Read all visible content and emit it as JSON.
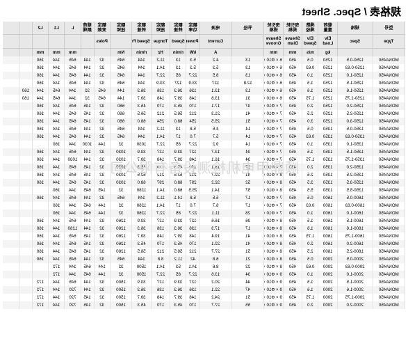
{
  "title": "规格表 / Spec. Sheet",
  "watermark": "顺鼎甲电机检测设备有限公司",
  "sheet": {
    "headers_row1": [
      "型号",
      "规格",
      "载荷\n重量",
      "绳数\n绳径",
      "曳引轮\n规格",
      "曳引轮\n规格",
      "节径",
      "电流",
      "额定\n功率",
      "额定\n转速",
      "额定\n扭矩",
      "额定\n转速",
      "额定\n扭矩",
      "额定\n变频",
      "载荷\n颜绳",
      "L",
      "L1",
      "L2"
    ],
    "headers_row2": [
      "Type",
      "Spec",
      "Elv\nLoad",
      "Elv\nSpeed",
      "Sheave\nDiam",
      "Sheave\nGroove",
      "",
      "Current",
      "Power",
      "Speed",
      "Torque",
      "Speed Freq",
      "",
      "Poles",
      "",
      " ",
      " ",
      " "
    ],
    "units": [
      "",
      "",
      "kg",
      "m/s",
      "mm",
      "mm",
      "",
      "A",
      "kW",
      "r/min",
      "Hz",
      "r/min",
      "Nm",
      "",
      "",
      "mm",
      "mm",
      "mm"
    ],
    "rows": [
      [
        "MONA450",
        "1250-0.5",
        "1250",
        "0.5",
        "450",
        "6 × Φ10 × 15",
        "13",
        "4.2",
        "5.3",
        "13",
        "11.2",
        "144",
        "645",
        "32",
        "144",
        "645",
        "144",
        "160"
      ],
      [
        "MONA450",
        "1250-0.63",
        "1250",
        "0.63",
        "450",
        "6 × Φ10 × 15",
        "13",
        "5.3",
        "5.3",
        "13",
        "14.1",
        "144",
        "645",
        "32",
        "144",
        "645",
        "144",
        "160"
      ],
      [
        "MONA450",
        "1250-1.0",
        "1250",
        "1.0",
        "450",
        "6 × Φ10 × 15",
        "13",
        "8.5",
        "22.7",
        "85",
        "22.7",
        "144",
        "645",
        "32",
        "144",
        "645",
        "144",
        "160"
      ],
      [
        "MONA450",
        "1250-1.5",
        "1250",
        "1.5",
        "450",
        "6 × Φ10 × 15",
        "12.8",
        "127",
        "33.9",
        "127",
        "33.9",
        "144",
        "645",
        "32",
        "144",
        "645",
        "144",
        "160"
      ],
      [
        "MONA450",
        "1250-1.6",
        "1250",
        "1.6",
        "450",
        "6 × Φ10 × 15",
        "13",
        "13.1",
        "136",
        "36.3",
        "136",
        "36.3",
        "144",
        "645",
        "32",
        "144",
        "645",
        "144",
        "160"
      ],
      [
        "MONA450",
        "1250-1.75",
        "1250",
        "1.75",
        "450",
        "6 × Φ10 × 15",
        "31",
        "13.8",
        "148",
        "39.7",
        "148",
        "39.7",
        "144",
        "645",
        "32",
        "144",
        "645",
        "144",
        "160"
      ],
      [
        "MONA450",
        "1250-2.0",
        "1250",
        "2.0",
        "450",
        "7 × Φ10 × 15",
        "37",
        "17.1",
        "170",
        "45.3",
        "170",
        "45.3",
        "660",
        "32",
        "145",
        "645",
        "144",
        "160"
      ],
      [
        "MONA450",
        "1250-2.5",
        "1250",
        "2.5",
        "450",
        "7 × Φ10 × 15",
        "41",
        "21.3",
        "212",
        "56.5",
        "212",
        "56.5",
        "660",
        "32",
        "145",
        "645",
        "144",
        "160"
      ],
      [
        "MONA450",
        "1250-3.0",
        "1250",
        "3.0",
        "450",
        "7 × Φ10 × 15",
        "51",
        "25.5",
        "254",
        "68.0",
        "254",
        "68.0",
        "660",
        "32",
        "145",
        "645",
        "144",
        "160"
      ],
      [
        "MONA450",
        "1350-0.5",
        "1350",
        "0.5",
        "450",
        "7 × Φ10 × 15",
        "14",
        "4.5",
        "5.8",
        "13",
        "11.2",
        "144",
        "645",
        "32",
        "144",
        "645",
        "144",
        "160"
      ],
      [
        "MONA450",
        "1350-0.63",
        "1350",
        "0.63",
        "450",
        "7 × Φ10 × 15",
        "14",
        "5.7",
        "7.0",
        "17",
        "14.1",
        "144",
        "645",
        "32",
        "144",
        "645",
        "144",
        "160"
      ],
      [
        "MONA450",
        "1350-1.0",
        "1350",
        "1.0",
        "450",
        "7 × Φ10 × 15",
        "14",
        "9.2",
        "22.7",
        "85",
        "22.7",
        "1030",
        "32",
        "144",
        "1030",
        "144",
        "160"
      ],
      [
        "MONA450",
        "1350-1.5",
        "1350",
        "1.5",
        "450",
        "7 × Φ10 × 15",
        "34",
        "13.7",
        "127",
        "33.9",
        "127",
        "33.9",
        "1030",
        "32",
        "144",
        "645",
        "144",
        "160"
      ],
      [
        "MONA450",
        "1350-1.75",
        "1350",
        "1.75",
        "450",
        "7 × Φ10 × 15",
        "34",
        "16.1",
        "148",
        "39.7",
        "148",
        "39.7",
        "1030",
        "32",
        "144",
        "1030",
        "144",
        "160"
      ],
      [
        "MONA450",
        "1350-2.0",
        "1350",
        "2.0",
        "450",
        "7 × Φ10 × 15",
        "37",
        "18.1",
        "170",
        "45.3",
        "170",
        "45.3",
        "1030",
        "32",
        "145",
        "645",
        "144",
        "160"
      ],
      [
        "MONA450",
        "1350-2.5",
        "1350",
        "2.5",
        "450",
        "8 × Φ10 × 15",
        "41",
        "22.7",
        "212",
        "52.5",
        "212",
        "52.5",
        "1030",
        "32",
        "145",
        "645",
        "144",
        "160"
      ],
      [
        "MONA450",
        "1350-3.5",
        "1350",
        "3.5",
        "450",
        "8 × Φ10 × 15",
        "52",
        "32.2",
        "297",
        "68.0",
        "297",
        "68.0",
        "1030",
        "32",
        "145",
        "645",
        "144",
        "160"
      ],
      [
        "MONA450",
        "1350-5.5",
        "1350",
        "5.5",
        "450",
        "8 × Φ10 × 15",
        "57",
        "14.1",
        "25.5",
        "68.0",
        "14.1",
        "1280",
        "32",
        "145",
        "645",
        "144",
        "160"
      ],
      [
        "MONA450",
        "1600-0.5",
        "1600",
        "0.5",
        "450",
        "7 × Φ10 × 15",
        "17",
        "5.5",
        "5.8",
        "14.1",
        "11.2",
        "144",
        "645",
        "32",
        "144",
        "645",
        "144",
        "160"
      ],
      [
        "MONA450",
        "1600-0.63",
        "1600",
        "0.63",
        "450",
        "7 × Φ10 × 15",
        "17",
        "6.7",
        "7.0",
        "17",
        "14.1",
        "1260",
        "32",
        "144",
        "645",
        "144",
        "160"
      ],
      [
        "MONA450",
        "1600-1.0",
        "1600",
        "1.0",
        "450",
        "7 × Φ10 × 15",
        "28",
        "11.1",
        "22.7",
        "85",
        "22.7",
        "1260",
        "32",
        "144",
        "645",
        "144",
        "160"
      ],
      [
        "MONA450",
        "1600-1.5",
        "1600",
        "1.5",
        "450",
        "8 × Φ10 × 15",
        "36",
        "16.6",
        "127",
        "33.9",
        "127",
        "33.9",
        "1260",
        "32",
        "144",
        "645",
        "144",
        "160"
      ],
      [
        "MONA450",
        "1600-1.6",
        "1600",
        "1.6",
        "450",
        "8 × Φ10 × 15",
        "17",
        "17.3",
        "136",
        "36.3",
        "136",
        "36.3",
        "1260",
        "32",
        "144",
        "1260",
        "144",
        "160"
      ],
      [
        "MONA450",
        "1600-1.75",
        "1600",
        "1.75",
        "450",
        "8 × Φ10 × 15",
        "41",
        "19.4",
        "148",
        "39.7",
        "148",
        "39.7",
        "1260",
        "32",
        "145",
        "645",
        "144",
        "160"
      ],
      [
        "MONA450",
        "1600-2.0",
        "1600",
        "2.0",
        "450",
        "8 × Φ10 × 15",
        "41",
        "22.1",
        "170",
        "45.3",
        "170",
        "45.3",
        "1260",
        "32",
        "145",
        "645",
        "144",
        "160"
      ],
      [
        "MONA450",
        "1600-2.5",
        "1600",
        "2.5",
        "450",
        "8 × Φ10 × 15",
        "51",
        "27.7",
        "212",
        "56.5",
        "212",
        "56.5",
        "1260",
        "32",
        "145",
        "645",
        "144",
        "160"
      ],
      [
        "MONA450",
        "2000-0.5",
        "2000",
        "0.5",
        "450",
        "8 × Φ10 × 15",
        "21",
        "6.8",
        "42",
        "11.2",
        "8.8",
        "144",
        "645",
        "32",
        "144",
        "645",
        "144",
        "160"
      ],
      [
        "MONA450",
        "2000-0.63",
        "2000",
        "0.63",
        "450",
        "8 × Φ10 × 15",
        "22",
        "8.6",
        "14.1",
        "53",
        "14.1",
        "1500",
        "32",
        "144",
        "645",
        "144",
        "172"
      ],
      [
        "MONA450",
        "2000-1.0",
        "2000",
        "1.0",
        "450",
        "9 × Φ10 × 15",
        "34",
        "13.6",
        "22.7",
        "85",
        "22.7",
        "1500",
        "32",
        "144",
        "645",
        "144",
        "172"
      ],
      [
        "MONA450",
        "2000-1.5",
        "2000",
        "1.5",
        "450",
        "9 × Φ10 × 15",
        "44",
        "20.2",
        "127",
        "33.9",
        "127",
        "33.9",
        "1500",
        "32",
        "144",
        "645",
        "144",
        "172"
      ],
      [
        "MONA450",
        "2000-1.6",
        "2000",
        "1.6",
        "450",
        "9 × Φ10 × 15",
        "47",
        "22.1",
        "136",
        "36.3",
        "136",
        "36.3",
        "1500",
        "32",
        "144",
        "720",
        "144",
        "172"
      ],
      [
        "MONA450",
        "2000-1.75",
        "2000",
        "1.75",
        "450",
        "9 × Φ10 × 15",
        "51",
        "24.2",
        "148",
        "39.7",
        "148",
        "39.7",
        "1500",
        "32",
        "145",
        "720",
        "144",
        "172"
      ],
      [
        "MONA450",
        "2000-2.0",
        "2000",
        "2.0",
        "450",
        "9 × Φ10 × 15",
        "55",
        "27.7",
        "170",
        "45.3",
        "170",
        "45.3",
        "1500",
        "32",
        "145",
        "720",
        "144",
        "172"
      ]
    ]
  }
}
